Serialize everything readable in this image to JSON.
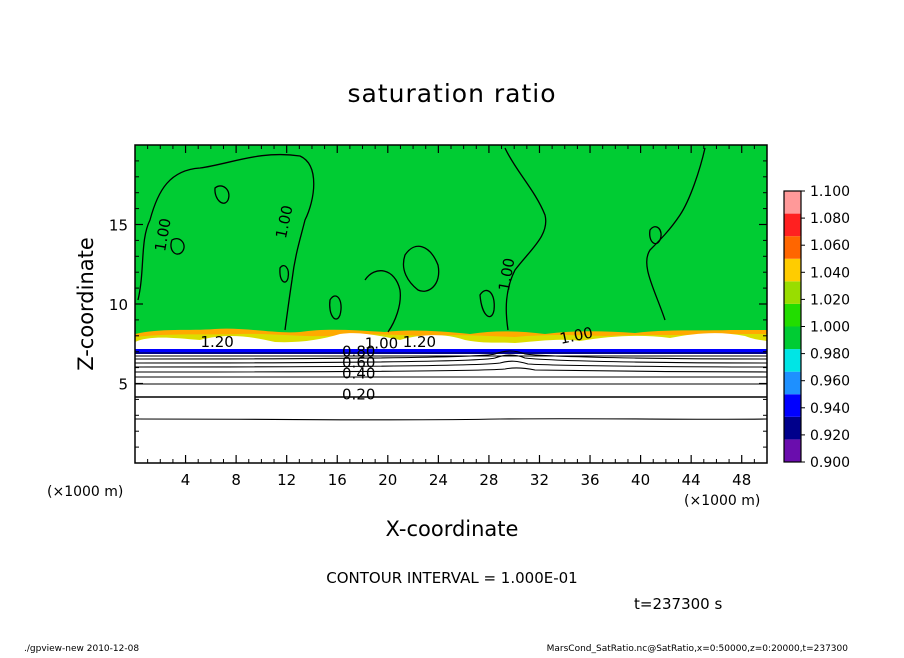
{
  "chart_data": {
    "type": "heatmap",
    "title": "saturation ratio",
    "xlabel": "X-coordinate",
    "ylabel": "Z-coordinate",
    "x_unit": "(×1000 m)",
    "y_unit": "(×1000 m)",
    "xlim": [
      0,
      50
    ],
    "ylim": [
      0,
      20
    ],
    "x_ticks": [
      4,
      8,
      12,
      16,
      20,
      24,
      28,
      32,
      36,
      40,
      44,
      48
    ],
    "y_ticks": [
      5,
      10,
      15
    ],
    "colorbar": {
      "levels": [
        0.9,
        0.92,
        0.94,
        0.96,
        0.98,
        1.0,
        1.02,
        1.04,
        1.06,
        1.08,
        1.1
      ],
      "labels": [
        "0.900",
        "0.920",
        "0.940",
        "0.960",
        "0.980",
        "1.000",
        "1.020",
        "1.040",
        "1.060",
        "1.080",
        "1.100"
      ],
      "colors": [
        "#6a0dad",
        "#00008b",
        "#0000ff",
        "#1e90ff",
        "#00e5e5",
        "#00cc33",
        "#22dd00",
        "#99dd00",
        "#ffcc00",
        "#ff6600",
        "#ff2020",
        "#ff9999"
      ]
    },
    "contour_labels": [
      {
        "text": "1.00",
        "x": 2.6,
        "z": 14.3,
        "rotate": -80
      },
      {
        "text": "1.00",
        "x": 12.2,
        "z": 15.1,
        "rotate": -78
      },
      {
        "text": "1.00",
        "x": 29.8,
        "z": 11.8,
        "rotate": -80
      },
      {
        "text": "1.20",
        "x": 6.5,
        "z": 7.3,
        "rotate": 0
      },
      {
        "text": "1.20",
        "x": 22.5,
        "z": 7.3,
        "rotate": 0
      },
      {
        "text": "1.00",
        "x": 19.5,
        "z": 7.2,
        "rotate": 0
      },
      {
        "text": "1.00",
        "x": 35.0,
        "z": 7.7,
        "rotate": -12
      },
      {
        "text": "0.80",
        "x": 17.7,
        "z": 6.7,
        "rotate": 0
      },
      {
        "text": "0.60",
        "x": 17.7,
        "z": 6.0,
        "rotate": 0
      },
      {
        "text": "0.40",
        "x": 17.7,
        "z": 5.3,
        "rotate": 0
      },
      {
        "text": "0.20",
        "x": 17.7,
        "z": 4.0,
        "rotate": 0
      }
    ],
    "contour_interval": "CONTOUR INTERVAL = 1.000E-01",
    "time_label": "t=237300 s",
    "grid": false
  },
  "footer": {
    "left": "./gpview-new   2010-12-08",
    "right": "MarsCond_SatRatio.nc@SatRatio,x=0:50000,z=0:20000,t=237300"
  }
}
